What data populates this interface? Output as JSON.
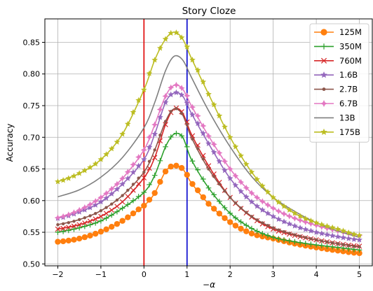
{
  "chart_data": {
    "type": "line",
    "title": "Story Cloze",
    "xlabel": "−α",
    "ylabel": "Accuracy",
    "xlim": [
      -2.3,
      5.3
    ],
    "ylim": [
      0.497,
      0.887
    ],
    "xticks": [
      -2,
      -1,
      0,
      1,
      2,
      3,
      4,
      5
    ],
    "xtick_labels": [
      "−2",
      "−1",
      "0",
      "1",
      "2",
      "3",
      "4",
      "5"
    ],
    "yticks": [
      0.5,
      0.55,
      0.6,
      0.65,
      0.7,
      0.75,
      0.8,
      0.85
    ],
    "ytick_labels": [
      "0.50",
      "0.55",
      "0.60",
      "0.65",
      "0.70",
      "0.75",
      "0.80",
      "0.85"
    ],
    "grid": true,
    "legend_position": "top-right",
    "vertical_lines": [
      {
        "x": 0,
        "color": "#e00000"
      },
      {
        "x": 1,
        "color": "#0000cc"
      }
    ],
    "series": [
      {
        "name": "125M",
        "color": "#ff7f0e",
        "marker": "circle",
        "points": [
          [
            -2,
            0.535
          ],
          [
            -1.5,
            0.54
          ],
          [
            -1,
            0.551
          ],
          [
            -0.5,
            0.568
          ],
          [
            0,
            0.592
          ],
          [
            0.25,
            0.612
          ],
          [
            0.5,
            0.646
          ],
          [
            0.7,
            0.655
          ],
          [
            0.9,
            0.65
          ],
          [
            1.1,
            0.628
          ],
          [
            1.5,
            0.595
          ],
          [
            2,
            0.566
          ],
          [
            2.5,
            0.548
          ],
          [
            3,
            0.54
          ],
          [
            3.5,
            0.532
          ],
          [
            4,
            0.526
          ],
          [
            4.5,
            0.521
          ],
          [
            5,
            0.517
          ]
        ]
      },
      {
        "name": "350M",
        "color": "#2ca02c",
        "marker": "plus",
        "points": [
          [
            -2,
            0.55
          ],
          [
            -1.5,
            0.557
          ],
          [
            -1,
            0.568
          ],
          [
            -0.5,
            0.588
          ],
          [
            0,
            0.613
          ],
          [
            0.25,
            0.64
          ],
          [
            0.5,
            0.685
          ],
          [
            0.7,
            0.705
          ],
          [
            0.9,
            0.7
          ],
          [
            1.1,
            0.665
          ],
          [
            1.5,
            0.62
          ],
          [
            2,
            0.58
          ],
          [
            2.5,
            0.556
          ],
          [
            3,
            0.542
          ],
          [
            3.5,
            0.535
          ],
          [
            4,
            0.53
          ],
          [
            4.5,
            0.526
          ],
          [
            5,
            0.522
          ]
        ]
      },
      {
        "name": "760M",
        "color": "#d62728",
        "marker": "x",
        "points": [
          [
            -2,
            0.555
          ],
          [
            -1.5,
            0.562
          ],
          [
            -1,
            0.575
          ],
          [
            -0.5,
            0.598
          ],
          [
            0,
            0.636
          ],
          [
            0.25,
            0.668
          ],
          [
            0.5,
            0.72
          ],
          [
            0.7,
            0.745
          ],
          [
            0.9,
            0.738
          ],
          [
            1.1,
            0.705
          ],
          [
            1.5,
            0.655
          ],
          [
            2,
            0.605
          ],
          [
            2.5,
            0.574
          ],
          [
            3,
            0.555
          ],
          [
            3.5,
            0.545
          ],
          [
            4,
            0.538
          ],
          [
            4.5,
            0.532
          ],
          [
            5,
            0.528
          ]
        ]
      },
      {
        "name": "1.6B",
        "color": "#9467bd",
        "marker": "star",
        "points": [
          [
            -2,
            0.572
          ],
          [
            -1.5,
            0.582
          ],
          [
            -1,
            0.598
          ],
          [
            -0.5,
            0.626
          ],
          [
            0,
            0.665
          ],
          [
            0.25,
            0.705
          ],
          [
            0.5,
            0.755
          ],
          [
            0.7,
            0.77
          ],
          [
            0.9,
            0.765
          ],
          [
            1.1,
            0.738
          ],
          [
            1.5,
            0.69
          ],
          [
            2,
            0.635
          ],
          [
            2.5,
            0.598
          ],
          [
            3,
            0.575
          ],
          [
            3.5,
            0.56
          ],
          [
            4,
            0.55
          ],
          [
            4.5,
            0.543
          ],
          [
            5,
            0.538
          ]
        ]
      },
      {
        "name": "2.7B",
        "color": "#8c564b",
        "marker": "dot",
        "points": [
          [
            -2,
            0.562
          ],
          [
            -1.5,
            0.57
          ],
          [
            -1,
            0.584
          ],
          [
            -0.5,
            0.608
          ],
          [
            0,
            0.645
          ],
          [
            0.25,
            0.68
          ],
          [
            0.5,
            0.725
          ],
          [
            0.7,
            0.745
          ],
          [
            0.9,
            0.735
          ],
          [
            1.1,
            0.7
          ],
          [
            1.5,
            0.65
          ],
          [
            2,
            0.605
          ],
          [
            2.5,
            0.575
          ],
          [
            3,
            0.557
          ],
          [
            3.5,
            0.546
          ],
          [
            4,
            0.538
          ],
          [
            4.5,
            0.532
          ],
          [
            5,
            0.527
          ]
        ]
      },
      {
        "name": "6.7B",
        "color": "#e377c2",
        "marker": "pentagon",
        "points": [
          [
            -2,
            0.573
          ],
          [
            -1.5,
            0.585
          ],
          [
            -1,
            0.605
          ],
          [
            -0.5,
            0.635
          ],
          [
            0,
            0.68
          ],
          [
            0.25,
            0.72
          ],
          [
            0.5,
            0.765
          ],
          [
            0.7,
            0.782
          ],
          [
            0.9,
            0.776
          ],
          [
            1.1,
            0.75
          ],
          [
            1.5,
            0.702
          ],
          [
            2,
            0.65
          ],
          [
            2.5,
            0.612
          ],
          [
            3,
            0.588
          ],
          [
            3.5,
            0.572
          ],
          [
            4,
            0.561
          ],
          [
            4.5,
            0.552
          ],
          [
            5,
            0.545
          ]
        ]
      },
      {
        "name": "13B",
        "color": "#7f7f7f",
        "marker": "none",
        "points": [
          [
            -2,
            0.606
          ],
          [
            -1.5,
            0.617
          ],
          [
            -1,
            0.637
          ],
          [
            -0.5,
            0.668
          ],
          [
            0,
            0.715
          ],
          [
            0.25,
            0.755
          ],
          [
            0.5,
            0.805
          ],
          [
            0.7,
            0.828
          ],
          [
            0.9,
            0.822
          ],
          [
            1.1,
            0.795
          ],
          [
            1.5,
            0.742
          ],
          [
            2,
            0.685
          ],
          [
            2.5,
            0.638
          ],
          [
            3,
            0.605
          ],
          [
            3.5,
            0.583
          ],
          [
            4,
            0.565
          ],
          [
            4.5,
            0.552
          ],
          [
            5,
            0.542
          ]
        ]
      },
      {
        "name": "175B",
        "color": "#bcbd22",
        "marker": "star",
        "points": [
          [
            -2,
            0.63
          ],
          [
            -1.5,
            0.643
          ],
          [
            -1,
            0.665
          ],
          [
            -0.5,
            0.705
          ],
          [
            0,
            0.775
          ],
          [
            0.25,
            0.822
          ],
          [
            0.5,
            0.855
          ],
          [
            0.7,
            0.866
          ],
          [
            0.9,
            0.855
          ],
          [
            1.1,
            0.825
          ],
          [
            1.5,
            0.768
          ],
          [
            2,
            0.7
          ],
          [
            2.5,
            0.645
          ],
          [
            3,
            0.605
          ],
          [
            3.5,
            0.58
          ],
          [
            4,
            0.565
          ],
          [
            4.5,
            0.555
          ],
          [
            5,
            0.545
          ]
        ]
      }
    ]
  }
}
